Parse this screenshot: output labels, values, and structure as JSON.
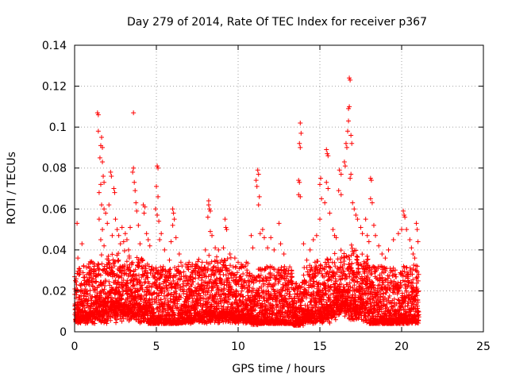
{
  "chart_data": {
    "type": "scatter",
    "title": "Day 279 of 2014, Rate Of TEC Index for receiver p367",
    "xlabel": "GPS time / hours",
    "ylabel": "ROTI / TECUs",
    "xlim": [
      0,
      25
    ],
    "ylim": [
      0,
      0.14
    ],
    "x_ticks": [
      0,
      5,
      10,
      15,
      20,
      25
    ],
    "x_tick_labels": [
      "0",
      "5",
      "10",
      "15",
      "20",
      "25"
    ],
    "y_ticks": [
      0,
      0.02,
      0.04,
      0.06,
      0.08,
      0.1,
      0.12,
      0.14
    ],
    "y_tick_labels": [
      "0",
      "0.02",
      "0.04",
      "0.06",
      "0.08",
      "0.1",
      "0.12",
      "0.14"
    ],
    "grid": true,
    "marker": "+",
    "color": "#ff0000",
    "data_x_range": [
      0,
      21.05
    ],
    "series": [
      {
        "name": "ROTI",
        "points": [
          [
            0.15,
            0.053
          ],
          [
            0.2,
            0.036
          ],
          [
            0.3,
            0.031
          ],
          [
            0.45,
            0.043
          ],
          [
            0.6,
            0.025
          ],
          [
            0.9,
            0.029
          ],
          [
            1.2,
            0.032
          ],
          [
            1.4,
            0.107
          ],
          [
            1.45,
            0.106
          ],
          [
            1.45,
            0.098
          ],
          [
            1.55,
            0.085
          ],
          [
            1.6,
            0.091
          ],
          [
            1.65,
            0.095
          ],
          [
            1.7,
            0.09
          ],
          [
            1.7,
            0.083
          ],
          [
            1.75,
            0.076
          ],
          [
            1.6,
            0.072
          ],
          [
            1.8,
            0.073
          ],
          [
            1.5,
            0.068
          ],
          [
            1.65,
            0.062
          ],
          [
            1.8,
            0.06
          ],
          [
            1.5,
            0.055
          ],
          [
            1.7,
            0.05
          ],
          [
            1.9,
            0.058
          ],
          [
            2.0,
            0.053
          ],
          [
            1.6,
            0.045
          ],
          [
            1.8,
            0.042
          ],
          [
            2.2,
            0.078
          ],
          [
            2.25,
            0.076
          ],
          [
            2.1,
            0.062
          ],
          [
            2.4,
            0.07
          ],
          [
            2.45,
            0.068
          ],
          [
            2.5,
            0.055
          ],
          [
            2.6,
            0.05
          ],
          [
            2.3,
            0.047
          ],
          [
            2.7,
            0.047
          ],
          [
            2.9,
            0.051
          ],
          [
            3.0,
            0.044
          ],
          [
            3.1,
            0.048
          ],
          [
            3.2,
            0.045
          ],
          [
            2.8,
            0.043
          ],
          [
            3.3,
            0.04
          ],
          [
            3.6,
            0.107
          ],
          [
            3.6,
            0.08
          ],
          [
            3.55,
            0.078
          ],
          [
            3.65,
            0.073
          ],
          [
            3.7,
            0.069
          ],
          [
            3.75,
            0.063
          ],
          [
            3.8,
            0.059
          ],
          [
            3.4,
            0.051
          ],
          [
            3.9,
            0.052
          ],
          [
            4.0,
            0.043
          ],
          [
            4.2,
            0.062
          ],
          [
            4.25,
            0.058
          ],
          [
            4.3,
            0.061
          ],
          [
            4.4,
            0.048
          ],
          [
            4.5,
            0.045
          ],
          [
            4.6,
            0.042
          ],
          [
            4.7,
            0.03
          ],
          [
            4.8,
            0.03
          ],
          [
            5.05,
            0.081
          ],
          [
            5.1,
            0.08
          ],
          [
            5.0,
            0.071
          ],
          [
            5.1,
            0.066
          ],
          [
            4.95,
            0.06
          ],
          [
            5.05,
            0.057
          ],
          [
            5.15,
            0.054
          ],
          [
            5.3,
            0.048
          ],
          [
            5.2,
            0.045
          ],
          [
            5.5,
            0.04
          ],
          [
            5.8,
            0.035
          ],
          [
            6.0,
            0.06
          ],
          [
            6.05,
            0.058
          ],
          [
            6.1,
            0.055
          ],
          [
            6.0,
            0.052
          ],
          [
            6.2,
            0.046
          ],
          [
            5.9,
            0.044
          ],
          [
            6.4,
            0.038
          ],
          [
            6.5,
            0.034
          ],
          [
            6.8,
            0.033
          ],
          [
            7.0,
            0.034
          ],
          [
            7.2,
            0.033
          ],
          [
            7.4,
            0.032
          ],
          [
            7.6,
            0.031
          ],
          [
            7.8,
            0.034
          ],
          [
            8.0,
            0.04
          ],
          [
            8.2,
            0.064
          ],
          [
            8.2,
            0.062
          ],
          [
            8.25,
            0.06
          ],
          [
            8.3,
            0.059
          ],
          [
            8.15,
            0.056
          ],
          [
            8.3,
            0.049
          ],
          [
            8.4,
            0.047
          ],
          [
            8.6,
            0.041
          ],
          [
            8.8,
            0.04
          ],
          [
            9.0,
            0.035
          ],
          [
            9.2,
            0.055
          ],
          [
            9.25,
            0.051
          ],
          [
            9.3,
            0.05
          ],
          [
            9.1,
            0.041
          ],
          [
            9.5,
            0.038
          ],
          [
            9.8,
            0.036
          ],
          [
            10.0,
            0.034
          ],
          [
            10.2,
            0.033
          ],
          [
            10.5,
            0.034
          ],
          [
            10.8,
            0.047
          ],
          [
            10.9,
            0.041
          ],
          [
            11.2,
            0.079
          ],
          [
            11.25,
            0.077
          ],
          [
            11.1,
            0.074
          ],
          [
            11.15,
            0.071
          ],
          [
            11.3,
            0.066
          ],
          [
            11.25,
            0.062
          ],
          [
            11.35,
            0.048
          ],
          [
            11.5,
            0.05
          ],
          [
            11.6,
            0.046
          ],
          [
            11.8,
            0.041
          ],
          [
            12.0,
            0.046
          ],
          [
            12.2,
            0.04
          ],
          [
            12.5,
            0.053
          ],
          [
            12.6,
            0.043
          ],
          [
            12.8,
            0.038
          ],
          [
            13.2,
            0.028
          ],
          [
            13.8,
            0.102
          ],
          [
            13.85,
            0.097
          ],
          [
            13.75,
            0.092
          ],
          [
            13.8,
            0.09
          ],
          [
            13.7,
            0.074
          ],
          [
            13.75,
            0.073
          ],
          [
            13.7,
            0.067
          ],
          [
            13.8,
            0.066
          ],
          [
            14.0,
            0.043
          ],
          [
            14.2,
            0.035
          ],
          [
            14.4,
            0.04
          ],
          [
            14.6,
            0.045
          ],
          [
            14.8,
            0.047
          ],
          [
            15.0,
            0.055
          ],
          [
            15.05,
            0.075
          ],
          [
            15.0,
            0.072
          ],
          [
            15.1,
            0.065
          ],
          [
            15.3,
            0.063
          ],
          [
            15.4,
            0.089
          ],
          [
            15.45,
            0.087
          ],
          [
            15.5,
            0.086
          ],
          [
            15.4,
            0.073
          ],
          [
            15.5,
            0.07
          ],
          [
            15.6,
            0.058
          ],
          [
            15.8,
            0.05
          ],
          [
            15.9,
            0.047
          ],
          [
            16.0,
            0.046
          ],
          [
            16.2,
            0.079
          ],
          [
            16.3,
            0.077
          ],
          [
            16.15,
            0.069
          ],
          [
            16.3,
            0.067
          ],
          [
            16.5,
            0.083
          ],
          [
            16.55,
            0.081
          ],
          [
            16.6,
            0.092
          ],
          [
            16.65,
            0.09
          ],
          [
            16.7,
            0.098
          ],
          [
            16.75,
            0.103
          ],
          [
            16.8,
            0.124
          ],
          [
            16.85,
            0.123
          ],
          [
            16.8,
            0.11
          ],
          [
            16.75,
            0.109
          ],
          [
            16.9,
            0.096
          ],
          [
            16.95,
            0.092
          ],
          [
            16.9,
            0.077
          ],
          [
            16.85,
            0.075
          ],
          [
            17.0,
            0.063
          ],
          [
            17.1,
            0.06
          ],
          [
            17.2,
            0.057
          ],
          [
            17.3,
            0.055
          ],
          [
            17.5,
            0.051
          ],
          [
            17.6,
            0.048
          ],
          [
            17.8,
            0.055
          ],
          [
            17.9,
            0.047
          ],
          [
            18.0,
            0.044
          ],
          [
            18.1,
            0.075
          ],
          [
            18.15,
            0.074
          ],
          [
            18.1,
            0.065
          ],
          [
            18.2,
            0.063
          ],
          [
            18.3,
            0.052
          ],
          [
            18.4,
            0.047
          ],
          [
            18.6,
            0.042
          ],
          [
            18.8,
            0.038
          ],
          [
            19.0,
            0.036
          ],
          [
            19.2,
            0.04
          ],
          [
            19.5,
            0.045
          ],
          [
            19.8,
            0.048
          ],
          [
            20.0,
            0.05
          ],
          [
            20.1,
            0.059
          ],
          [
            20.15,
            0.057
          ],
          [
            20.2,
            0.056
          ],
          [
            20.3,
            0.05
          ],
          [
            20.5,
            0.045
          ],
          [
            20.6,
            0.041
          ],
          [
            20.7,
            0.038
          ],
          [
            20.8,
            0.036
          ],
          [
            20.9,
            0.053
          ],
          [
            20.95,
            0.05
          ],
          [
            21.0,
            0.044
          ]
        ]
      }
    ]
  }
}
